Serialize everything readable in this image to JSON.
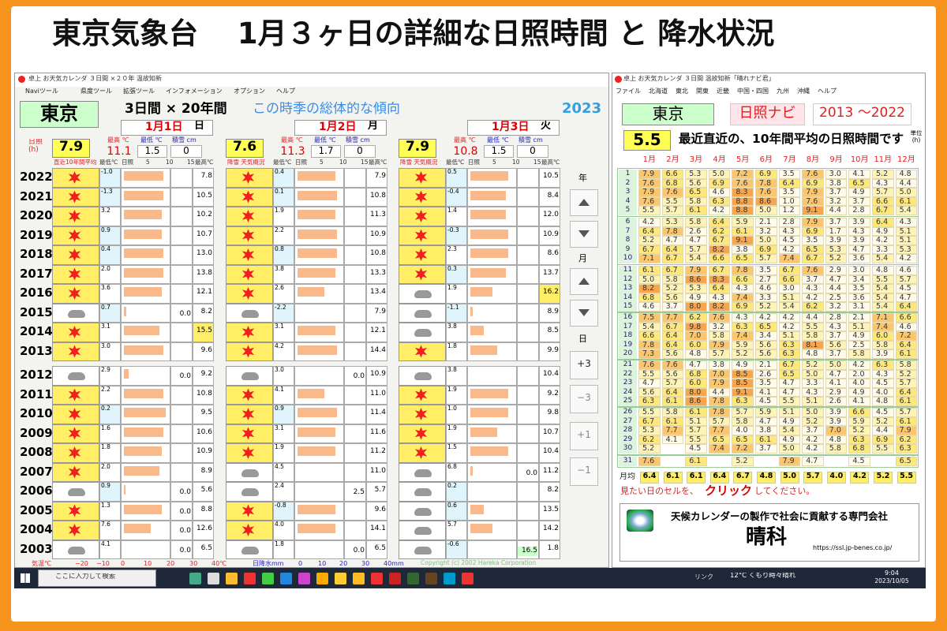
{
  "title": "東京気象台　 1月３ヶ日の詳細な日照時間 と 降水状況",
  "left": {
    "window_title": "卓上 お天気カレンダ ３日間 ×２０年 温故知新",
    "menu": [
      "Naviツール",
      "県度ツール",
      "拡張ツール",
      "インフォメーション",
      "オプション",
      "ヘルプ"
    ],
    "city": "東京",
    "span": "3日間 × 20年間",
    "trend": "この時季の総体的な傾向",
    "year": "2023",
    "sun_label": "日照(h)",
    "years": [
      "2022",
      "2021",
      "2020",
      "2019",
      "2018",
      "2017",
      "2016",
      "2015",
      "2014",
      "2013",
      "2012",
      "2011",
      "2010",
      "2009",
      "2008",
      "2007",
      "2006",
      "2005",
      "2004",
      "2003"
    ],
    "days": [
      {
        "date": "1月1日",
        "weekday": "日",
        "sun": "7.9",
        "max_label": "最高 ℃",
        "max": "11.1",
        "min_label": "最低 ℃",
        "min": "1.5",
        "snow_label": "積雪 cm",
        "snow": "0",
        "col_headers": [
          "直近10年間平均",
          "最低℃",
          "日照",
          "5",
          "10",
          "15",
          "最高℃"
        ],
        "low": [
          "-1.0",
          "-1.3",
          "3.2",
          "0.9",
          "0.4",
          "2.0",
          "3.6",
          "0.7",
          "3.1",
          "3.0",
          "2.9",
          "2.2",
          "0.2",
          "1.6",
          "1.8",
          "2.0",
          "0.9",
          "1.3",
          "7.6",
          "4.1"
        ],
        "precip": [
          null,
          null,
          null,
          null,
          null,
          null,
          null,
          "0.0",
          null,
          null,
          "0.0",
          null,
          null,
          null,
          null,
          null,
          "0.0",
          "0.0",
          "0.0",
          "0.0"
        ],
        "high": [
          "7.8",
          "10.5",
          "10.2",
          "10.7",
          "13.0",
          "13.8",
          "12.1",
          "8.2",
          "15.5",
          "9.6",
          "9.2",
          "10.8",
          "9.5",
          "10.6",
          "10.9",
          "8.9",
          "5.6",
          "8.8",
          "12.6",
          "6.5"
        ],
        "sunshine": [
          9.0,
          9.0,
          8.5,
          8.5,
          9.0,
          9.0,
          8.5,
          0.5,
          8.0,
          9.0,
          1.0,
          9.0,
          9.5,
          9.0,
          8.5,
          8.0,
          0.3,
          8.5,
          6.0,
          0.0
        ]
      },
      {
        "date": "1月2日",
        "weekday": "月",
        "sun": "7.6",
        "max_label": "最高 ℃",
        "max": "11.3",
        "min_label": "最低 ℃",
        "min": "1.7",
        "snow_label": "積雪 cm",
        "snow": "0",
        "col_headers": [
          "降雪 天気概況",
          "最低℃",
          "日照",
          "5",
          "10",
          "15",
          "最高℃"
        ],
        "low": [
          "0.4",
          "0.1",
          "1.9",
          "2.2",
          "0.8",
          "3.8",
          "2.6",
          "-2.2",
          "3.1",
          "4.2",
          "3.0",
          "4.1",
          "0.9",
          "3.1",
          "1.9",
          "4.5",
          "2.4",
          "-0.8",
          "4.0",
          "1.8"
        ],
        "precip": [
          null,
          null,
          null,
          null,
          null,
          null,
          null,
          null,
          null,
          null,
          "0.0",
          null,
          null,
          null,
          null,
          null,
          "2.5",
          null,
          null,
          "0.0"
        ],
        "high": [
          "7.9",
          "10.8",
          "11.3",
          "10.9",
          "10.8",
          "13.3",
          "13.4",
          "7.9",
          "12.1",
          "14.4",
          "10.9",
          "11.0",
          "11.4",
          "11.6",
          "11.2",
          "11.0",
          "5.7",
          "9.6",
          "14.1",
          "6.5"
        ],
        "sunshine": [
          8.5,
          9.0,
          8.5,
          9.0,
          9.0,
          8.5,
          6.0,
          0.0,
          8.5,
          9.0,
          0.0,
          6.0,
          9.0,
          8.5,
          8.5,
          0.0,
          0.0,
          8.5,
          8.5,
          0.0
        ]
      },
      {
        "date": "1月3日",
        "weekday": "火",
        "sun": "7.9",
        "max_label": "最高 ℃",
        "max": "10.8",
        "min_label": "最低 ℃",
        "min": "1.5",
        "snow_label": "積雪 cm",
        "snow": "0",
        "col_headers": [
          "降雪 天気概況",
          "最低℃",
          "日照",
          "5",
          "10",
          "15",
          "最高℃"
        ],
        "low": [
          "0.5",
          "-0.4",
          "1.4",
          "-0.3",
          "2.3",
          "0.3",
          "1.9",
          "-1.1",
          "3.8",
          "1.8",
          "3.8",
          "1.9",
          "1.0",
          "1.9",
          "1.5",
          "6.8",
          "0.2",
          "0.6",
          "5.7",
          "-0.6"
        ],
        "precip": [
          null,
          null,
          null,
          null,
          null,
          null,
          null,
          null,
          null,
          null,
          null,
          null,
          null,
          null,
          null,
          "0.0",
          null,
          null,
          null,
          "16.5"
        ],
        "high": [
          "10.5",
          "8.4",
          "12.0",
          "10.9",
          "8.6",
          "13.7",
          "16.2",
          "8.9",
          "8.5",
          "9.9",
          "10.4",
          "9.2",
          "9.8",
          "10.7",
          "10.4",
          "11.2",
          "8.2",
          "13.5",
          "14.2",
          "1.8"
        ],
        "sunshine": [
          8.5,
          8.0,
          8.0,
          8.5,
          8.5,
          8.0,
          5.0,
          0.5,
          3.0,
          6.0,
          0.0,
          8.5,
          8.5,
          6.0,
          8.5,
          0.5,
          0.0,
          3.0,
          5.0,
          0.0
        ]
      }
    ],
    "nav": {
      "year": "年",
      "month": "月",
      "day": "日",
      "buttons": [
        "+3",
        "−3",
        "+1",
        "−1"
      ]
    },
    "footer": {
      "temp_label": "気温℃",
      "temp_ticks": [
        "−20",
        "−10",
        "0",
        "10",
        "20",
        "30",
        "40℃"
      ],
      "rain_label": "日降水mm",
      "rain_ticks": [
        "0",
        "10",
        "20",
        "30",
        "40mm"
      ],
      "copyright": "Copyright (c) 2002 Hareka Corporation"
    }
  },
  "right": {
    "window_title": "卓上 お天気カレンダ ３日間 温故知新「晴れナビ君」",
    "menu": [
      "ファイル",
      "北海道",
      "東北",
      "関東",
      "近畿",
      "中国・四国",
      "九州",
      "沖縄",
      "ヘルプ"
    ],
    "city": "東京",
    "navi": "日照ナビ",
    "period": "2013 〜2022",
    "avg": "5.5",
    "avg_text": "最近直近の、10年間平均の日照時間です",
    "unit": "単位(h)",
    "months": [
      "1月",
      "2月",
      "3月",
      "4月",
      "5月",
      "6月",
      "7月",
      "8月",
      "9月",
      "10月",
      "11月",
      "12月"
    ],
    "days": [
      1,
      2,
      3,
      4,
      5,
      6,
      7,
      8,
      9,
      10,
      11,
      12,
      13,
      14,
      15,
      16,
      17,
      18,
      19,
      20,
      21,
      22,
      23,
      24,
      25,
      26,
      27,
      28,
      29,
      30,
      31
    ],
    "rows": [
      [
        "7.9",
        "6.6",
        "5.3",
        "5.0",
        "7.2",
        "6.9",
        "3.5",
        "7.6",
        "3.0",
        "4.1",
        "5.2",
        "4.8"
      ],
      [
        "7.6",
        "6.8",
        "5.6",
        "6.9",
        "7.6",
        "7.8",
        "6.4",
        "6.9",
        "3.8",
        "6.5",
        "4.3",
        "4.4"
      ],
      [
        "7.9",
        "7.6",
        "6.5",
        "4.6",
        "8.3",
        "7.6",
        "3.5",
        "7.9",
        "3.7",
        "4.9",
        "5.7",
        "5.0"
      ],
      [
        "7.6",
        "5.5",
        "5.8",
        "6.3",
        "8.8",
        "8.6",
        "1.0",
        "7.6",
        "3.2",
        "3.7",
        "6.6",
        "6.1"
      ],
      [
        "5.5",
        "5.7",
        "6.1",
        "4.2",
        "8.8",
        "5.0",
        "1.2",
        "9.1",
        "4.4",
        "2.8",
        "6.7",
        "5.4"
      ],
      [
        "4.2",
        "5.3",
        "5.8",
        "6.4",
        "5.9",
        "2.1",
        "2.8",
        "7.9",
        "3.7",
        "3.9",
        "6.4",
        "4.3"
      ],
      [
        "6.4",
        "7.8",
        "2.6",
        "6.2",
        "6.1",
        "3.2",
        "4.3",
        "6.9",
        "1.7",
        "4.3",
        "4.9",
        "5.1"
      ],
      [
        "5.2",
        "4.7",
        "4.7",
        "6.7",
        "9.1",
        "5.0",
        "4.5",
        "3.5",
        "3.9",
        "3.9",
        "4.2",
        "5.1"
      ],
      [
        "6.7",
        "6.4",
        "5.7",
        "8.2",
        "3.8",
        "6.9",
        "4.2",
        "6.5",
        "5.3",
        "4.7",
        "3.3",
        "5.3"
      ],
      [
        "7.1",
        "6.7",
        "5.4",
        "6.6",
        "6.5",
        "5.7",
        "7.4",
        "6.7",
        "5.2",
        "3.6",
        "5.4",
        "4.2"
      ],
      [
        "6.1",
        "6.7",
        "7.9",
        "6.7",
        "7.8",
        "3.5",
        "6.7",
        "7.6",
        "2.9",
        "3.0",
        "4.8",
        "4.6"
      ],
      [
        "5.0",
        "5.8",
        "8.6",
        "8.3",
        "6.6",
        "2.7",
        "6.6",
        "3.7",
        "4.7",
        "3.4",
        "5.5",
        "5.7"
      ],
      [
        "8.2",
        "5.2",
        "5.3",
        "6.4",
        "4.3",
        "4.6",
        "3.0",
        "4.3",
        "4.4",
        "3.5",
        "5.4",
        "4.5"
      ],
      [
        "6.8",
        "5.6",
        "4.9",
        "4.3",
        "7.4",
        "3.3",
        "5.1",
        "4.2",
        "2.5",
        "3.6",
        "5.4",
        "4.7"
      ],
      [
        "4.6",
        "3.7",
        "8.0",
        "8.2",
        "6.9",
        "5.2",
        "5.4",
        "6.2",
        "3.2",
        "3.1",
        "5.4",
        "6.4"
      ],
      [
        "7.5",
        "7.7",
        "6.2",
        "7.6",
        "4.3",
        "4.2",
        "4.2",
        "4.4",
        "2.8",
        "2.1",
        "7.1",
        "6.6"
      ],
      [
        "5.4",
        "6.7",
        "9.8",
        "3.2",
        "6.3",
        "6.5",
        "4.2",
        "5.5",
        "4.3",
        "5.1",
        "7.4",
        "4.6"
      ],
      [
        "6.6",
        "6.4",
        "7.0",
        "5.8",
        "7.4",
        "3.4",
        "5.1",
        "5.8",
        "3.7",
        "4.9",
        "6.0",
        "7.2"
      ],
      [
        "7.8",
        "6.4",
        "6.0",
        "7.9",
        "5.9",
        "5.6",
        "6.3",
        "8.1",
        "5.6",
        "2.5",
        "5.8",
        "6.4"
      ],
      [
        "7.3",
        "5.6",
        "4.8",
        "5.7",
        "5.2",
        "5.6",
        "6.3",
        "4.8",
        "3.7",
        "5.8",
        "3.9",
        "6.1"
      ],
      [
        "7.6",
        "7.6",
        "4.7",
        "3.8",
        "4.9",
        "2.1",
        "6.7",
        "5.2",
        "5.0",
        "4.2",
        "6.3",
        "5.8"
      ],
      [
        "5.5",
        "5.6",
        "6.8",
        "7.0",
        "8.5",
        "2.6",
        "6.5",
        "5.0",
        "4.7",
        "2.0",
        "4.3",
        "5.2"
      ],
      [
        "4.7",
        "5.7",
        "6.0",
        "7.9",
        "8.5",
        "3.5",
        "4.7",
        "3.3",
        "4.1",
        "4.0",
        "4.5",
        "5.7"
      ],
      [
        "5.6",
        "6.4",
        "8.0",
        "4.4",
        "9.1",
        "4.1",
        "4.7",
        "4.3",
        "2.9",
        "4.9",
        "4.0",
        "6.4"
      ],
      [
        "6.3",
        "6.1",
        "8.6",
        "7.8",
        "6.3",
        "4.5",
        "5.5",
        "5.1",
        "2.6",
        "4.1",
        "4.8",
        "6.1"
      ],
      [
        "5.5",
        "5.8",
        "6.1",
        "7.8",
        "5.7",
        "5.9",
        "5.1",
        "5.0",
        "3.9",
        "6.6",
        "4.5",
        "5.7"
      ],
      [
        "6.7",
        "6.1",
        "5.1",
        "5.7",
        "5.8",
        "4.7",
        "4.9",
        "5.2",
        "3.9",
        "5.9",
        "5.2",
        "6.1"
      ],
      [
        "5.3",
        "7.7",
        "5.7",
        "7.7",
        "4.0",
        "3.8",
        "5.4",
        "3.7",
        "7.0",
        "5.2",
        "4.4",
        "7.9"
      ],
      [
        "6.2",
        "4.1",
        "5.5",
        "6.5",
        "6.5",
        "6.1",
        "4.9",
        "4.2",
        "4.8",
        "6.3",
        "6.9",
        "6.2"
      ],
      [
        "5.2",
        null,
        "4.5",
        "7.4",
        "7.2",
        "3.7",
        "5.0",
        "4.2",
        "5.8",
        "6.8",
        "5.5",
        "6.3"
      ],
      [
        "7.6",
        null,
        "6.1",
        null,
        "5.2",
        null,
        "7.9",
        "4.7",
        null,
        "4.5",
        null,
        "6.5"
      ]
    ],
    "monthly_label": "月均",
    "monthly": [
      "6.4",
      "6.1",
      "6.1",
      "6.4",
      "6.7",
      "4.8",
      "5.0",
      "5.7",
      "4.0",
      "4.2",
      "5.2",
      "5.5"
    ],
    "click": [
      "見たい日のセルを、",
      "クリック",
      "してください。"
    ],
    "company": {
      "slogan": "天候カレンダーの製作で社会に貢献する専門会社",
      "name": "晴科",
      "url": "https://ssl.jp-benes.co.jp/"
    }
  },
  "taskbar": {
    "search": "ここに入力して検索",
    "link": "リンク",
    "weather": "12°C くもり時々晴れ",
    "time": "9:04",
    "date": "2023/10/05"
  }
}
